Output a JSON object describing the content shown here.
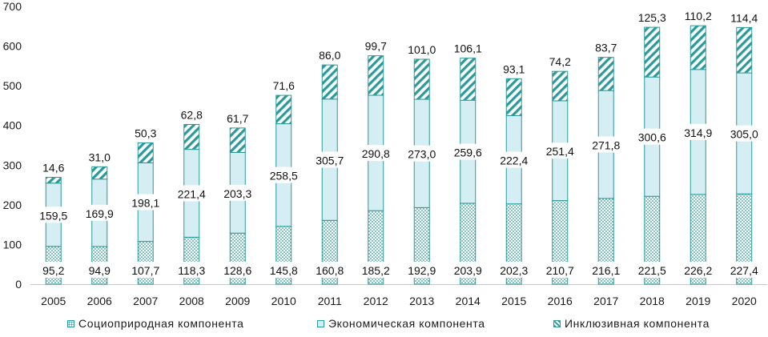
{
  "chart_data": {
    "type": "bar",
    "stacked": true,
    "title": "",
    "xlabel": "",
    "ylabel": "",
    "ylim": [
      0,
      700
    ],
    "yticks": [
      0,
      100,
      200,
      300,
      400,
      500,
      600,
      700
    ],
    "grid": false,
    "legend_position": "bottom",
    "categories": [
      "2005",
      "2006",
      "2007",
      "2008",
      "2009",
      "2010",
      "2011",
      "2012",
      "2013",
      "2014",
      "2015",
      "2016",
      "2017",
      "2018",
      "2019",
      "2020"
    ],
    "series": [
      {
        "name": "Социоприродная компонента",
        "pattern": "dots",
        "color": "#2a9a9a",
        "values": [
          95.2,
          94.9,
          107.7,
          118.3,
          128.6,
          145.8,
          160.8,
          185.2,
          192.9,
          203.9,
          202.3,
          210.7,
          216.1,
          221.5,
          226.2,
          227.4
        ],
        "labels": [
          "95,2",
          "94,9",
          "107,7",
          "118,3",
          "128,6",
          "145,8",
          "160,8",
          "185,2",
          "192,9",
          "203,9",
          "202,3",
          "210,7",
          "216,1",
          "221,5",
          "226,2",
          "227,4"
        ]
      },
      {
        "name": "Экономическая компонента",
        "pattern": "solid",
        "color": "#d5eef3",
        "values": [
          159.5,
          169.9,
          198.1,
          221.4,
          203.3,
          258.5,
          305.7,
          290.8,
          273.0,
          259.6,
          222.4,
          251.4,
          271.8,
          300.6,
          314.9,
          305.0
        ],
        "labels": [
          "159,5",
          "169,9",
          "198,1",
          "221,4",
          "203,3",
          "258,5",
          "305,7",
          "290,8",
          "273,0",
          "259,6",
          "222,4",
          "251,4",
          "271,8",
          "300,6",
          "314,9",
          "305,0"
        ]
      },
      {
        "name": "Инклюзивная компонента",
        "pattern": "stripes",
        "color": "#2a9a9a",
        "values": [
          14.6,
          31.0,
          50.3,
          62.8,
          61.7,
          71.6,
          86.0,
          99.7,
          101.0,
          106.1,
          93.1,
          74.2,
          83.7,
          125.3,
          110.2,
          114.4
        ],
        "labels": [
          "14,6",
          "31,0",
          "50,3",
          "62,8",
          "61,7",
          "71,6",
          "86,0",
          "99,7",
          "101,0",
          "106,1",
          "93,1",
          "74,2",
          "83,7",
          "125,3",
          "110,2",
          "114,4"
        ]
      }
    ]
  },
  "legend": {
    "items": [
      {
        "label": "Социоприродная компонента",
        "swatch": "dots"
      },
      {
        "label": "Экономическая компонента",
        "swatch": "solid"
      },
      {
        "label": "Инклюзивная компонента",
        "swatch": "stripes"
      }
    ]
  }
}
